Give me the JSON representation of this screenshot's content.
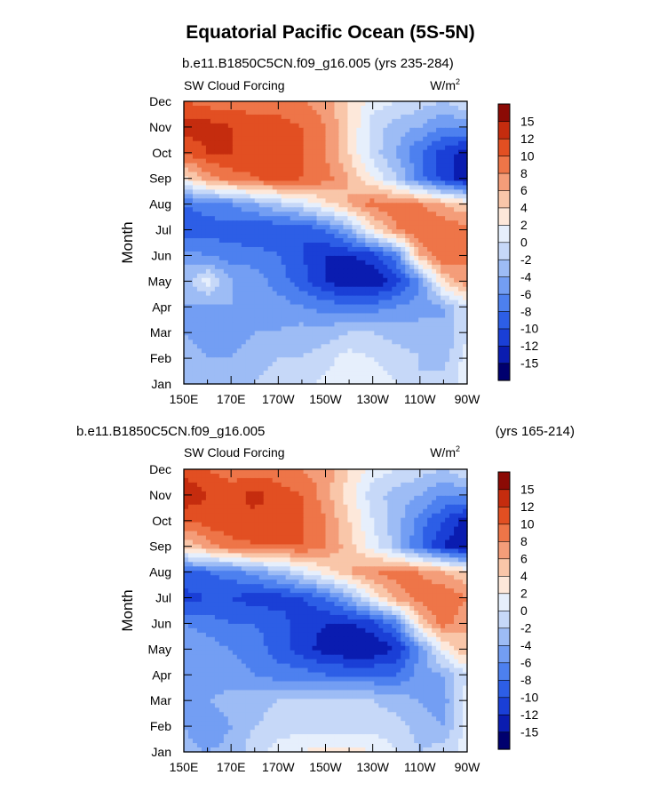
{
  "title": "Equatorial Pacific Ocean (5S-5N)",
  "chart_data": [
    {
      "type": "heatmap",
      "subtitle_left": "b.e11.B1850C5CN.f09_g16.005 (yrs 235-284)",
      "subtitle_right": "",
      "left_label": "SW Cloud Forcing",
      "units_base": "W/m",
      "units_exp": "2",
      "ylabel": "Month",
      "xlabel": "",
      "x_ticks": [
        "150E",
        "170E",
        "170W",
        "150W",
        "130W",
        "110W",
        "90W"
      ],
      "y_ticks": [
        "Jan",
        "Feb",
        "Mar",
        "Apr",
        "May",
        "Jun",
        "Jul",
        "Aug",
        "Sep",
        "Oct",
        "Nov",
        "Dec"
      ],
      "xlim": [
        "150E",
        "90W"
      ],
      "colorbar_labels": [
        "15",
        "12",
        "10",
        "8",
        "6",
        "4",
        "2",
        "0",
        "-2",
        "-4",
        "-6",
        "-8",
        "-10",
        "-12",
        "-15"
      ],
      "rows": [
        [
          -2,
          -3,
          -3,
          -2,
          -1,
          -1,
          1,
          2,
          1,
          0,
          -2,
          -1,
          1
        ],
        [
          -3,
          -4,
          -4,
          -3,
          -2,
          -2,
          -1,
          1,
          0,
          -1,
          -2,
          -3,
          1
        ],
        [
          -4,
          -5,
          -5,
          -4,
          -4,
          -3,
          -3,
          -2,
          -2,
          -3,
          -3,
          -4,
          0
        ],
        [
          -4,
          -5,
          -4,
          -4,
          -5,
          -6,
          -7,
          -7,
          -7,
          -6,
          -5,
          -4,
          0
        ],
        [
          -3,
          1,
          -4,
          -5,
          -7,
          -9,
          -12,
          -14,
          -14,
          -11,
          -6,
          4,
          8
        ],
        [
          -5,
          -6,
          -7,
          -7,
          -8,
          -10,
          -12,
          -12,
          -11,
          -7,
          6,
          10,
          8
        ],
        [
          -10,
          -9,
          -9,
          -10,
          -10,
          -10,
          -8,
          -4,
          3,
          8,
          10,
          10,
          9
        ],
        [
          -8,
          -7,
          -6,
          -4,
          -2,
          0,
          3,
          6,
          9,
          9,
          8,
          6,
          4
        ],
        [
          3,
          7,
          9,
          10,
          11,
          10,
          9,
          6,
          2,
          -2,
          -7,
          -11,
          -14
        ],
        [
          10,
          12,
          12,
          11,
          11,
          10,
          8,
          4,
          -1,
          -4,
          -8,
          -11,
          -13
        ],
        [
          13,
          13,
          12,
          11,
          11,
          10,
          8,
          4,
          -1,
          -3,
          -4,
          -6,
          -6
        ],
        [
          10,
          9,
          9,
          9,
          9,
          8,
          7,
          4,
          1,
          0,
          -1,
          -2,
          0
        ]
      ]
    },
    {
      "type": "heatmap",
      "subtitle_left": "b.e11.B1850C5CN.f09_g16.005",
      "subtitle_right": "(yrs 165-214)",
      "left_label": "SW Cloud Forcing",
      "units_base": "W/m",
      "units_exp": "2",
      "ylabel": "Month",
      "xlabel": "",
      "x_ticks": [
        "150E",
        "170E",
        "170W",
        "150W",
        "130W",
        "110W",
        "90W"
      ],
      "y_ticks": [
        "Jan",
        "Feb",
        "Mar",
        "Apr",
        "May",
        "Jun",
        "Jul",
        "Aug",
        "Sep",
        "Oct",
        "Nov",
        "Dec"
      ],
      "xlim": [
        "150E",
        "90W"
      ],
      "colorbar_labels": [
        "15",
        "12",
        "10",
        "8",
        "6",
        "4",
        "2",
        "0",
        "-2",
        "-4",
        "-6",
        "-8",
        "-10",
        "-12",
        "-15"
      ],
      "rows": [
        [
          -3,
          -4,
          -3,
          -1,
          1,
          2,
          3,
          3,
          2,
          0,
          -2,
          -1,
          1
        ],
        [
          -4,
          -6,
          -4,
          -2,
          -1,
          -1,
          -1,
          -1,
          -1,
          -1,
          -3,
          -4,
          1
        ],
        [
          -4,
          -4,
          -3,
          -3,
          -2,
          -2,
          -2,
          -2,
          -2,
          -3,
          -4,
          -5,
          1
        ],
        [
          -5,
          -6,
          -5,
          -6,
          -7,
          -7,
          -8,
          -8,
          -8,
          -8,
          -5,
          -4,
          0
        ],
        [
          -4,
          -5,
          -6,
          -7,
          -9,
          -11,
          -13,
          -14,
          -14,
          -12,
          -6,
          2,
          6
        ],
        [
          -6,
          -7,
          -8,
          -8,
          -9,
          -11,
          -12,
          -12,
          -11,
          -7,
          4,
          9,
          6
        ],
        [
          -11,
          -10,
          -10,
          -11,
          -11,
          -10,
          -8,
          -4,
          2,
          7,
          9,
          10,
          8
        ],
        [
          -8,
          -8,
          -7,
          -5,
          -3,
          0,
          3,
          6,
          8,
          9,
          8,
          6,
          4
        ],
        [
          4,
          7,
          9,
          10,
          10,
          10,
          8,
          5,
          1,
          -3,
          -8,
          -12,
          -14
        ],
        [
          10,
          11,
          12,
          11,
          11,
          10,
          8,
          4,
          0,
          -3,
          -7,
          -10,
          -13
        ],
        [
          14,
          12,
          11,
          13,
          11,
          10,
          7,
          3,
          -1,
          -3,
          -4,
          -6,
          -6
        ],
        [
          11,
          10,
          9,
          9,
          9,
          8,
          7,
          4,
          1,
          0,
          -1,
          -2,
          0
        ]
      ]
    }
  ]
}
